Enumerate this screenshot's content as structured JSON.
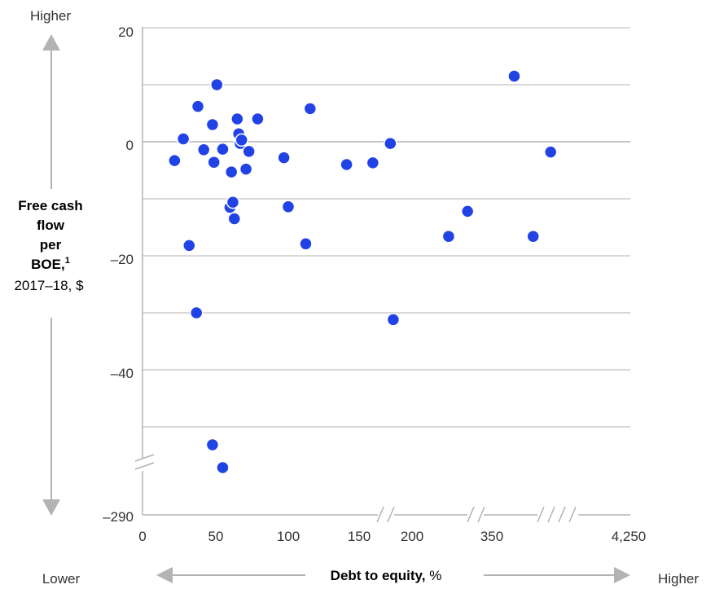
{
  "chart_data": {
    "type": "scatter",
    "x_axis": {
      "label_bold": "Debt to equity,",
      "label_rest": " %",
      "tick_labels": [
        "0",
        "50",
        "100",
        "150",
        "200",
        "350",
        "4,250"
      ],
      "broken": true
    },
    "y_axis": {
      "label_lines_bold": [
        "Free cash",
        "flow",
        "per",
        "BOE,"
      ],
      "footnote_marker": "1",
      "label_last_line": "2017–18, $",
      "tick_labels": [
        "20",
        "0",
        "–20",
        "–40",
        "–290"
      ],
      "range_main": [
        -50,
        20
      ],
      "broken": true
    },
    "corner_labels": {
      "y_high": "Higher",
      "x_low": "Lower",
      "x_high": "Higher"
    },
    "grid": true,
    "colors": {
      "points": "#2143e6",
      "grid": "#b3b3b3",
      "arrow": "#b3b3b3",
      "text": "#333333"
    },
    "points": [
      {
        "x": 22,
        "y": -3.3
      },
      {
        "x": 28,
        "y": 0.5
      },
      {
        "x": 32,
        "y": -18.2
      },
      {
        "x": 37,
        "y": -30.0
      },
      {
        "x": 38,
        "y": 6.2
      },
      {
        "x": 42,
        "y": -1.4
      },
      {
        "x": 48,
        "y": 3.0
      },
      {
        "x": 49,
        "y": -3.6
      },
      {
        "x": 51,
        "y": 10.0
      },
      {
        "x": 55,
        "y": -1.3
      },
      {
        "x": 60,
        "y": -11.5
      },
      {
        "x": 61,
        "y": -5.3
      },
      {
        "x": 62,
        "y": -10.6
      },
      {
        "x": 63,
        "y": -13.5
      },
      {
        "x": 65,
        "y": 4.0
      },
      {
        "x": 66,
        "y": 1.4
      },
      {
        "x": 67,
        "y": -0.3
      },
      {
        "x": 68,
        "y": 0.3
      },
      {
        "x": 71,
        "y": -4.8
      },
      {
        "x": 73,
        "y": -1.7
      },
      {
        "x": 79,
        "y": 4.0
      },
      {
        "x": 97,
        "y": -2.8
      },
      {
        "x": 100,
        "y": -11.4
      },
      {
        "x": 112,
        "y": -17.9
      },
      {
        "x": 115,
        "y": 5.8
      },
      {
        "x": 140,
        "y": -4.0
      },
      {
        "x": 158,
        "y": -3.7
      },
      {
        "x": 170,
        "y": -0.3
      },
      {
        "x": 172,
        "y": -31.2
      },
      {
        "x": 210,
        "y": -16.6
      },
      {
        "x": 223,
        "y": -12.2
      },
      {
        "x": 255,
        "y": 11.5
      },
      {
        "x": 268,
        "y": -16.6
      },
      {
        "x": 280,
        "y": -1.8
      }
    ],
    "points_below_y_break": [
      {
        "x": 48,
        "y": -283
      },
      {
        "x": 55,
        "y": -286
      }
    ],
    "x_units_note": "Points beyond 150 sit on the broken segments of the axis (labelled 200, 350, 4,250)."
  }
}
